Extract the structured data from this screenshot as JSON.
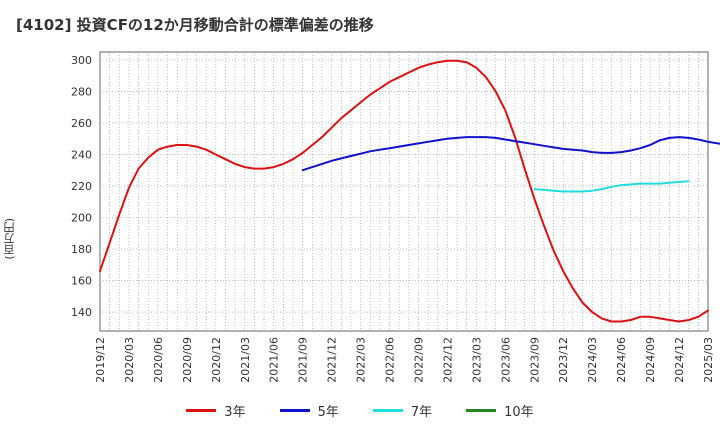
{
  "chart_data": {
    "type": "line",
    "title": "[4102]  投資CFの12か月移動合計の標準偏差の推移",
    "ylabel": "(百万円)",
    "ylim": [
      128,
      305
    ],
    "yticks": [
      140,
      160,
      180,
      200,
      220,
      240,
      260,
      280,
      300
    ],
    "grid": true,
    "legend_position": "bottom",
    "x_tick_labels": [
      "2019/12",
      "2020/03",
      "2020/06",
      "2020/09",
      "2020/12",
      "2021/03",
      "2021/06",
      "2021/09",
      "2021/12",
      "2022/03",
      "2022/06",
      "2022/09",
      "2022/12",
      "2023/03",
      "2023/06",
      "2023/09",
      "2023/12",
      "2024/03",
      "2024/06",
      "2024/09",
      "2024/12",
      "2025/03"
    ],
    "series": [
      {
        "name": "3年",
        "color": "#dd1111",
        "start_month": 0,
        "values": [
          166,
          184,
          202,
          219,
          231,
          238,
          243,
          245,
          246,
          246,
          245,
          243,
          240,
          237,
          234,
          232,
          231,
          231,
          232,
          234,
          237,
          241,
          246,
          251,
          257,
          263,
          268,
          273,
          278,
          282,
          286,
          289,
          292,
          295,
          297,
          298.5,
          299.5,
          299.5,
          298.5,
          295,
          289,
          280,
          268,
          251,
          231,
          212,
          195,
          179,
          166,
          155,
          146,
          140,
          136,
          134,
          134,
          135,
          137,
          137,
          136,
          135,
          134,
          135,
          137,
          141
        ]
      },
      {
        "name": "5年",
        "color": "#1111cc",
        "start_month": 21,
        "values": [
          230,
          232,
          234,
          236,
          237.5,
          239,
          240.5,
          242,
          243,
          244,
          245,
          246,
          247,
          248,
          249,
          250,
          250.5,
          251,
          251,
          251,
          250.5,
          249.5,
          248.5,
          247.5,
          246.5,
          245.5,
          244.5,
          243.5,
          243,
          242.5,
          241.5,
          241,
          241,
          241.5,
          242.5,
          244,
          246,
          249,
          250.5,
          251,
          250.5,
          249.5,
          248,
          247,
          246
        ]
      },
      {
        "name": "7年",
        "color": "#22dddd",
        "start_month": 45,
        "values": [
          218,
          217.5,
          217,
          216.5,
          216.5,
          216.5,
          217,
          218,
          219.5,
          220.5,
          221,
          221.5,
          221.5,
          221.5,
          222,
          222.5,
          223
        ]
      },
      {
        "name": "10年",
        "color": "#228822",
        "start_month": 0,
        "values": []
      }
    ]
  }
}
